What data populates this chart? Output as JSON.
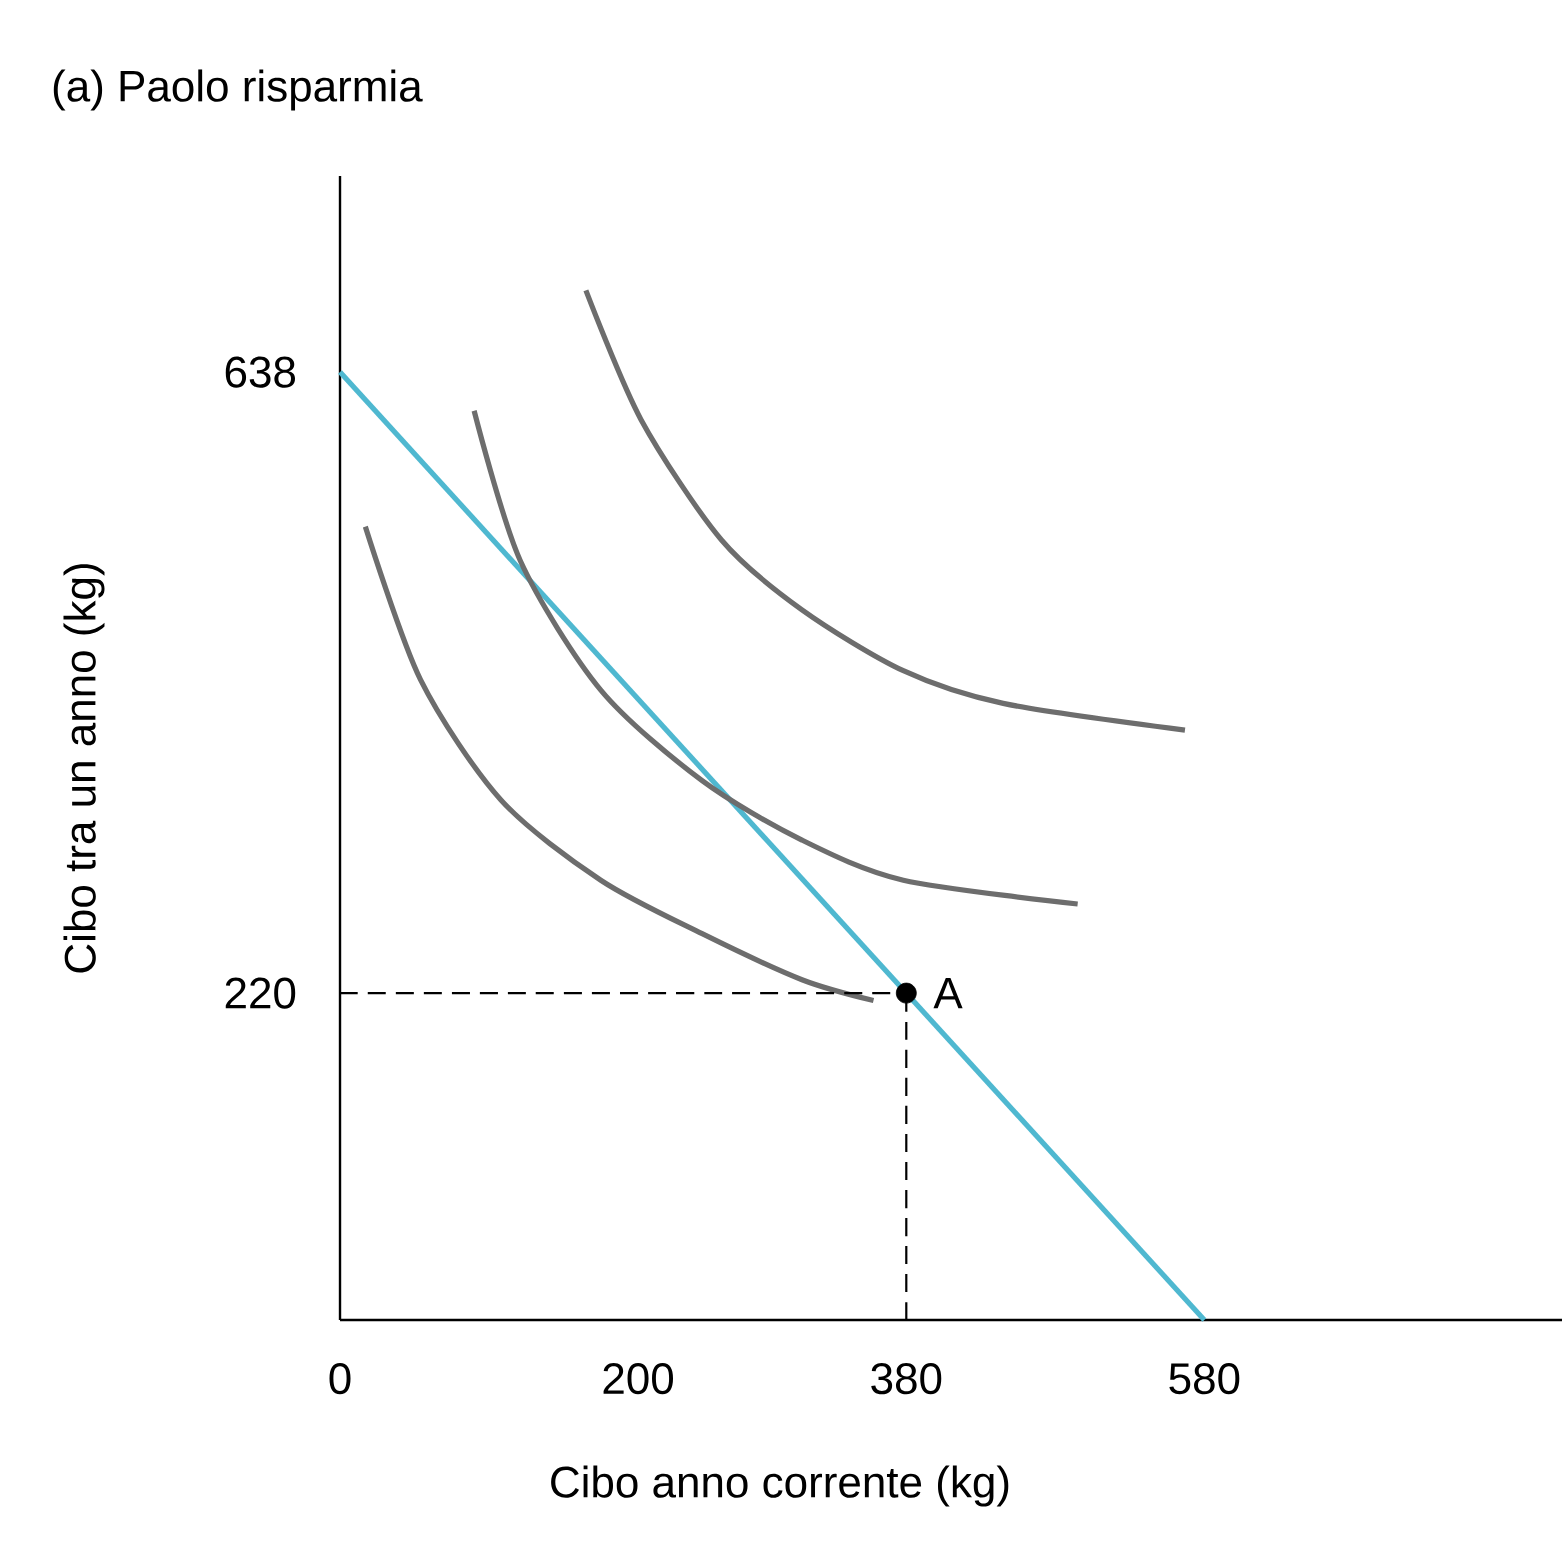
{
  "chart_data": {
    "type": "line",
    "title": "(a) Paolo risparmia",
    "xlabel": "Cibo anno corrente (kg)",
    "ylabel": "Cibo tra un anno (kg)",
    "xlim": [
      0,
      820
    ],
    "ylim": [
      0,
      770
    ],
    "xticks": [
      0,
      200,
      380,
      580
    ],
    "yticks": [
      220,
      638
    ],
    "series": [
      {
        "color": "#4fb8d0",
        "x": [
          0,
          580
        ],
        "values": [
          638,
          0
        ]
      },
      {
        "color": "#6d6d6d",
        "x": [
          17,
          54,
          108,
          175,
          243,
          310,
          358
        ],
        "values": [
          534,
          431,
          350,
          296,
          260,
          229,
          215
        ]
      },
      {
        "color": "#6d6d6d",
        "x": [
          90,
          121,
          175,
          243,
          310,
          378,
          495
        ],
        "values": [
          612,
          511,
          424,
          363,
          323,
          296,
          280
        ]
      },
      {
        "color": "#6d6d6d",
        "x": [
          165,
          202,
          256,
          310,
          378,
          445,
          567
        ],
        "values": [
          693,
          606,
          525,
          478,
          437,
          415,
          397
        ]
      },
      {
        "color": "#000000",
        "line_style": "dashed",
        "x": [
          0,
          380
        ],
        "values": [
          220,
          220
        ]
      },
      {
        "color": "#000000",
        "line_style": "dashed",
        "x": [
          380,
          380
        ],
        "values": [
          0,
          220
        ]
      },
      {
        "type": "scatter",
        "color": "#000000",
        "marker": "circle",
        "x": [
          380
        ],
        "values": [
          220
        ]
      }
    ],
    "annotations": [
      {
        "text": "A",
        "x": 380,
        "y": 220
      }
    ]
  }
}
